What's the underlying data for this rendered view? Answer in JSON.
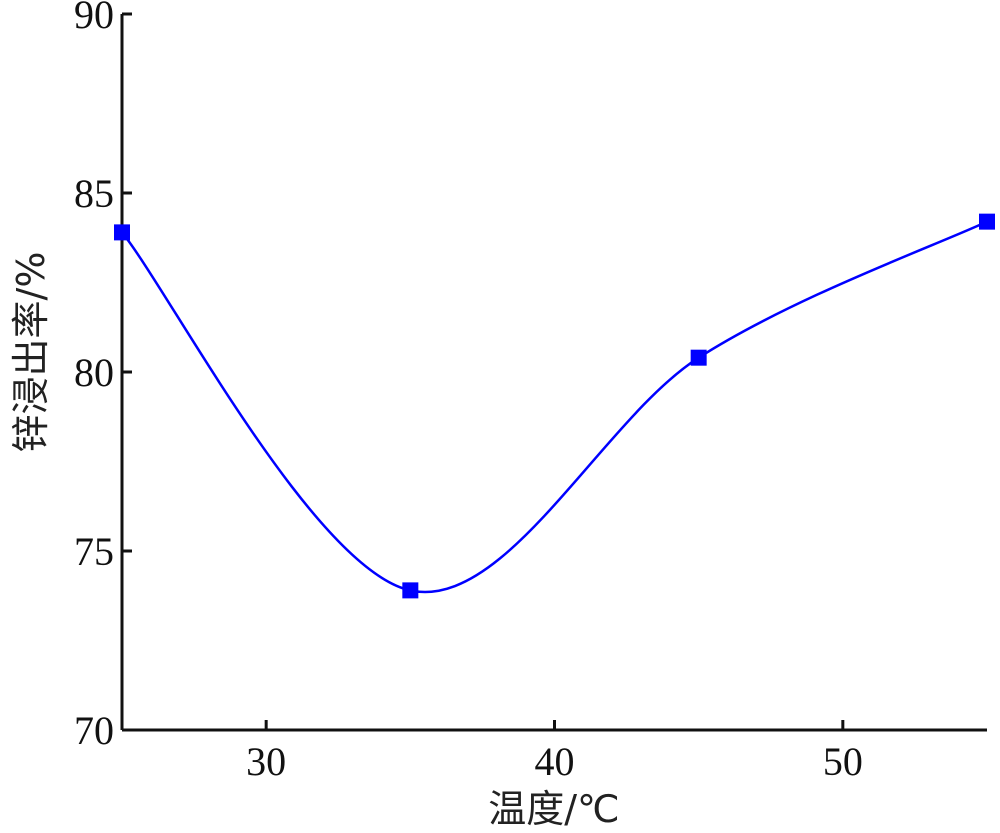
{
  "chart_data": {
    "type": "line",
    "xlabel": "温度/℃",
    "ylabel": "锌浸出率/%",
    "xlim": [
      25,
      55
    ],
    "ylim": [
      70,
      90
    ],
    "x_ticks": [
      30,
      40,
      50
    ],
    "y_ticks": [
      70,
      75,
      80,
      85,
      90
    ],
    "series": [
      {
        "x": [
          25,
          35,
          45,
          55
        ],
        "y": [
          83.9,
          73.9,
          80.4,
          84.2
        ],
        "color": "#0000ff",
        "marker": "square",
        "line": "smooth"
      }
    ],
    "grid": false
  }
}
